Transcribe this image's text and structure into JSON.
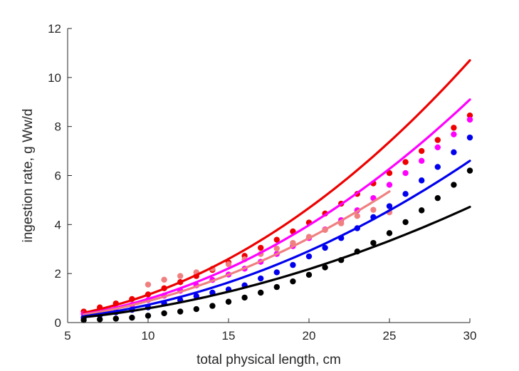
{
  "chart_data": {
    "type": "scatter",
    "xlabel": "total physical length, cm",
    "ylabel": "ingestion rate, g Ww/d",
    "xlim": [
      5,
      30
    ],
    "ylim": [
      0,
      12
    ],
    "xticks": [
      5,
      10,
      15,
      20,
      25,
      30
    ],
    "yticks": [
      0,
      2,
      4,
      6,
      8,
      10,
      12
    ],
    "grid": false,
    "legend": "none",
    "series": [
      {
        "color": "#ee0000",
        "points": {
          "x": [
            6,
            7,
            8,
            9,
            10,
            11,
            12,
            13,
            14,
            15,
            16,
            17,
            18,
            19,
            20,
            21,
            22,
            23,
            24,
            25,
            26,
            27,
            28,
            29,
            30
          ],
          "y": [
            0.45,
            0.62,
            0.78,
            0.96,
            1.15,
            1.4,
            1.65,
            1.9,
            2.15,
            2.45,
            2.72,
            3.05,
            3.38,
            3.72,
            4.08,
            4.45,
            4.85,
            5.25,
            5.68,
            6.1,
            6.55,
            7.0,
            7.45,
            7.95,
            8.45
          ]
        },
        "curve": {
          "x": [
            6,
            30
          ],
          "y": [
            0.4,
            10.7
          ]
        }
      },
      {
        "color": "#ff00ff",
        "points": {
          "x": [
            6,
            7,
            8,
            9,
            10,
            11,
            12,
            13,
            14,
            15,
            16,
            17,
            18,
            19,
            20,
            21,
            22,
            23,
            24,
            25,
            26,
            27,
            28,
            29,
            30
          ],
          "y": [
            0.35,
            0.46,
            0.58,
            0.72,
            0.92,
            1.1,
            1.3,
            1.52,
            1.74,
            1.96,
            2.2,
            2.48,
            2.8,
            3.12,
            3.45,
            3.8,
            4.18,
            4.58,
            5.08,
            5.62,
            6.1,
            6.6,
            7.15,
            7.68,
            8.28
          ]
        },
        "curve": {
          "x": [
            6,
            30
          ],
          "y": [
            0.34,
            9.1
          ]
        }
      },
      {
        "color": "#f08080",
        "points": {
          "x": [
            10,
            11,
            12,
            13,
            14,
            15,
            16,
            17,
            18,
            19,
            20,
            21,
            22,
            23,
            24,
            25
          ],
          "y": [
            1.55,
            1.75,
            1.9,
            2.05,
            2.2,
            2.38,
            2.58,
            2.8,
            3.02,
            3.25,
            3.5,
            3.78,
            4.05,
            4.35,
            4.6,
            4.5
          ]
        },
        "curve": {
          "x": [
            6,
            25
          ],
          "y": [
            0.32,
            5.35
          ]
        }
      },
      {
        "color": "#0000ee",
        "points": {
          "x": [
            6,
            7,
            8,
            9,
            10,
            11,
            12,
            13,
            14,
            15,
            16,
            17,
            18,
            19,
            20,
            21,
            22,
            23,
            24,
            25,
            26,
            27,
            28,
            29,
            30
          ],
          "y": [
            0.2,
            0.3,
            0.42,
            0.52,
            0.62,
            0.78,
            0.92,
            1.08,
            1.22,
            1.35,
            1.52,
            1.8,
            2.05,
            2.35,
            2.7,
            3.05,
            3.45,
            3.85,
            4.3,
            4.75,
            5.25,
            5.8,
            6.35,
            6.95,
            7.55
          ]
        },
        "curve": {
          "x": [
            6,
            30
          ],
          "y": [
            0.26,
            6.6
          ]
        }
      },
      {
        "color": "#000000",
        "points": {
          "x": [
            6,
            7,
            8,
            9,
            10,
            11,
            12,
            13,
            14,
            15,
            16,
            17,
            18,
            19,
            20,
            21,
            22,
            23,
            24,
            25,
            26,
            27,
            28,
            29,
            30
          ],
          "y": [
            0.1,
            0.13,
            0.16,
            0.2,
            0.28,
            0.38,
            0.45,
            0.55,
            0.68,
            0.85,
            1.02,
            1.22,
            1.45,
            1.68,
            1.95,
            2.25,
            2.55,
            2.9,
            3.25,
            3.65,
            4.1,
            4.58,
            5.08,
            5.62,
            6.2
          ]
        },
        "curve": {
          "x": [
            6,
            30
          ],
          "y": [
            0.22,
            4.72
          ]
        }
      }
    ]
  }
}
